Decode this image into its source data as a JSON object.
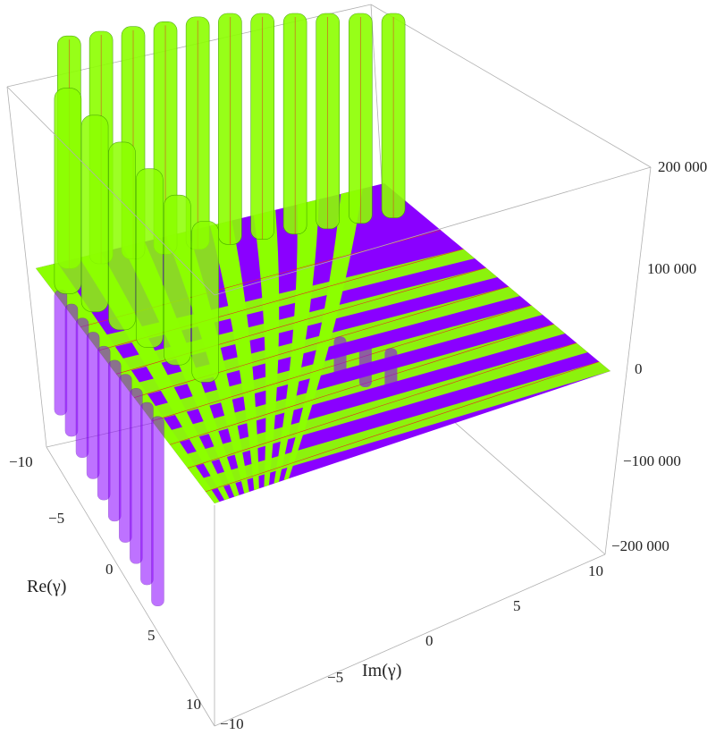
{
  "chart_data": {
    "type": "surface",
    "title": "",
    "xlabel": "Im(γ)",
    "ylabel": "Re(γ)",
    "zlabel": "",
    "xlim": [
      -10,
      10
    ],
    "ylim": [
      -10,
      10
    ],
    "zlim": [
      -200000,
      200000
    ],
    "x_ticks": [
      "−10",
      "−5",
      "0",
      "5",
      "10"
    ],
    "y_ticks": [
      "−10",
      "−5",
      "0",
      "5",
      "10"
    ],
    "z_ticks": [
      "200 000",
      "100 000",
      "0",
      "−100 000",
      "−200 000"
    ],
    "colors": {
      "band_a": "#8cff00",
      "band_b": "#8a00ff",
      "mesh": "#e0301e",
      "box": "#b0b0b0"
    },
    "description_of_surface": "striped surface near z=0 with vertical poles rising beyond the top and dropping below the bottom"
  }
}
